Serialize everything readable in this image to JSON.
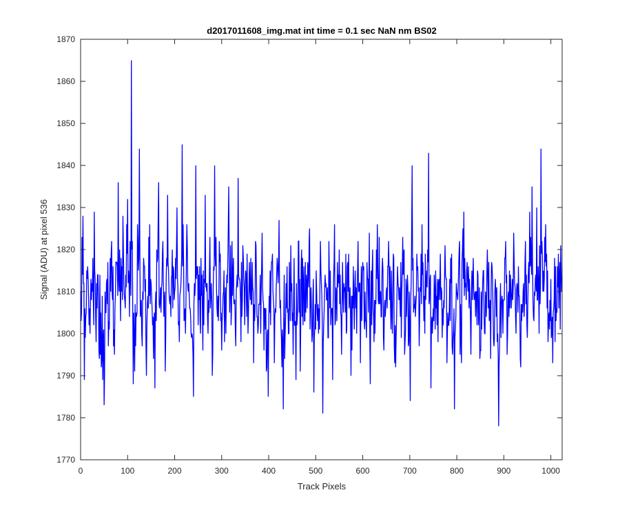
{
  "chart_data": {
    "type": "line",
    "title": "d2017011608_img.mat int time = 0.1 sec  NaN nm BS02",
    "xlabel": "Track Pixels",
    "ylabel": "Signal (ADU) at pixel 536",
    "xlim": [
      0,
      1024
    ],
    "ylim": [
      1770,
      1870
    ],
    "xticks": [
      0,
      100,
      200,
      300,
      400,
      500,
      600,
      700,
      800,
      900,
      1000
    ],
    "yticks": [
      1770,
      1780,
      1790,
      1800,
      1810,
      1820,
      1830,
      1840,
      1850,
      1860,
      1870
    ],
    "grid": false,
    "legend": "none",
    "box": true,
    "series": [
      {
        "color": "#0000ff",
        "noise": {
          "n": 1024,
          "mean": 1809,
          "sd": 7,
          "seed": 536
        },
        "points": [
          [
            0,
            1810
          ],
          [
            5,
            1828
          ],
          [
            8,
            1789
          ],
          [
            10,
            1799
          ],
          [
            15,
            1816
          ],
          [
            20,
            1800
          ],
          [
            26,
            1818
          ],
          [
            29,
            1829
          ],
          [
            33,
            1798
          ],
          [
            37,
            1814
          ],
          [
            42,
            1795
          ],
          [
            47,
            1789
          ],
          [
            50,
            1783
          ],
          [
            55,
            1812
          ],
          [
            60,
            1803
          ],
          [
            66,
            1822
          ],
          [
            70,
            1797
          ],
          [
            75,
            1817
          ],
          [
            80,
            1836
          ],
          [
            85,
            1803
          ],
          [
            90,
            1828
          ],
          [
            95,
            1806
          ],
          [
            100,
            1832
          ],
          [
            104,
            1804
          ],
          [
            108,
            1865
          ],
          [
            112,
            1788
          ],
          [
            117,
            1797
          ],
          [
            121,
            1826
          ],
          [
            125,
            1844
          ],
          [
            130,
            1800
          ],
          [
            135,
            1816
          ],
          [
            140,
            1790
          ],
          [
            145,
            1823
          ],
          [
            150,
            1812
          ],
          [
            155,
            1794
          ],
          [
            158,
            1787
          ],
          [
            162,
            1820
          ],
          [
            166,
            1836
          ],
          [
            171,
            1805
          ],
          [
            175,
            1822
          ],
          [
            180,
            1791
          ],
          [
            185,
            1833
          ],
          [
            190,
            1807
          ],
          [
            195,
            1820
          ],
          [
            200,
            1810
          ],
          [
            205,
            1830
          ],
          [
            210,
            1798
          ],
          [
            216,
            1845
          ],
          [
            221,
            1804
          ],
          [
            226,
            1826
          ],
          [
            230,
            1812
          ],
          [
            235,
            1800
          ],
          [
            240,
            1785
          ],
          [
            245,
            1840
          ],
          [
            250,
            1802
          ],
          [
            256,
            1818
          ],
          [
            260,
            1796
          ],
          [
            265,
            1833
          ],
          [
            270,
            1804
          ],
          [
            275,
            1823
          ],
          [
            280,
            1790
          ],
          [
            285,
            1840
          ],
          [
            290,
            1806
          ],
          [
            295,
            1822
          ],
          [
            300,
            1796
          ],
          [
            305,
            1815
          ],
          [
            310,
            1810
          ],
          [
            315,
            1835
          ],
          [
            320,
            1802
          ],
          [
            325,
            1818
          ],
          [
            330,
            1797
          ],
          [
            335,
            1837
          ],
          [
            340,
            1808
          ],
          [
            345,
            1821
          ],
          [
            350,
            1812
          ],
          [
            356,
            1800
          ],
          [
            362,
            1818
          ],
          [
            368,
            1793
          ],
          [
            372,
            1822
          ],
          [
            377,
            1800
          ],
          [
            382,
            1814
          ],
          [
            386,
            1824
          ],
          [
            390,
            1796
          ],
          [
            395,
            1791
          ],
          [
            399,
            1785
          ],
          [
            402,
            1805
          ],
          [
            407,
            1817
          ],
          [
            412,
            1793
          ],
          [
            417,
            1814
          ],
          [
            422,
            1827
          ],
          [
            427,
            1799
          ],
          [
            431,
            1782
          ],
          [
            437,
            1812
          ],
          [
            442,
            1800
          ],
          [
            447,
            1821
          ],
          [
            452,
            1795
          ],
          [
            458,
            1789
          ],
          [
            463,
            1822
          ],
          [
            468,
            1800
          ],
          [
            472,
            1818
          ],
          [
            476,
            1803
          ],
          [
            481,
            1812
          ],
          [
            487,
            1825
          ],
          [
            492,
            1798
          ],
          [
            496,
            1786
          ],
          [
            501,
            1815
          ],
          [
            506,
            1800
          ],
          [
            510,
            1822
          ],
          [
            515,
            1781
          ],
          [
            521,
            1811
          ],
          [
            526,
            1799
          ],
          [
            531,
            1815
          ],
          [
            536,
            1789
          ],
          [
            540,
            1826
          ],
          [
            545,
            1803
          ],
          [
            550,
            1820
          ],
          [
            555,
            1795
          ],
          [
            560,
            1812
          ],
          [
            565,
            1800
          ],
          [
            570,
            1819
          ],
          [
            575,
            1790
          ],
          [
            580,
            1816
          ],
          [
            585,
            1806
          ],
          [
            590,
            1822
          ],
          [
            595,
            1793
          ],
          [
            600,
            1817
          ],
          [
            606,
            1803
          ],
          [
            611,
            1813
          ],
          [
            616,
            1788
          ],
          [
            621,
            1820
          ],
          [
            626,
            1800
          ],
          [
            631,
            1826
          ],
          [
            636,
            1807
          ],
          [
            641,
            1815
          ],
          [
            645,
            1796
          ],
          [
            650,
            1810
          ],
          [
            655,
            1822
          ],
          [
            660,
            1801
          ],
          [
            665,
            1819
          ],
          [
            670,
            1792
          ],
          [
            675,
            1812
          ],
          [
            680,
            1804
          ],
          [
            685,
            1823
          ],
          [
            690,
            1798
          ],
          [
            696,
            1811
          ],
          [
            701,
            1784
          ],
          [
            705,
            1840
          ],
          [
            710,
            1806
          ],
          [
            715,
            1819
          ],
          [
            720,
            1797
          ],
          [
            726,
            1826
          ],
          [
            730,
            1803
          ],
          [
            735,
            1812
          ],
          [
            740,
            1843
          ],
          [
            745,
            1787
          ],
          [
            750,
            1806
          ],
          [
            755,
            1815
          ],
          [
            760,
            1798
          ],
          [
            765,
            1819
          ],
          [
            770,
            1806
          ],
          [
            775,
            1821
          ],
          [
            780,
            1800
          ],
          [
            785,
            1813
          ],
          [
            790,
            1797
          ],
          [
            795,
            1782
          ],
          [
            800,
            1810
          ],
          [
            805,
            1820
          ],
          [
            810,
            1793
          ],
          [
            815,
            1829
          ],
          [
            820,
            1808
          ],
          [
            825,
            1816
          ],
          [
            830,
            1795
          ],
          [
            835,
            1818
          ],
          [
            840,
            1804
          ],
          [
            845,
            1814
          ],
          [
            850,
            1796
          ],
          [
            855,
            1812
          ],
          [
            860,
            1800
          ],
          [
            865,
            1820
          ],
          [
            870,
            1804
          ],
          [
            875,
            1816
          ],
          [
            880,
            1799
          ],
          [
            885,
            1811
          ],
          [
            889,
            1778
          ],
          [
            893,
            1812
          ],
          [
            898,
            1800
          ],
          [
            902,
            1818
          ],
          [
            907,
            1795
          ],
          [
            912,
            1815
          ],
          [
            916,
            1806
          ],
          [
            921,
            1824
          ],
          [
            926,
            1800
          ],
          [
            931,
            1816
          ],
          [
            936,
            1792
          ],
          [
            941,
            1810
          ],
          [
            946,
            1822
          ],
          [
            950,
            1799
          ],
          [
            955,
            1829
          ],
          [
            960,
            1835
          ],
          [
            965,
            1810
          ],
          [
            970,
            1830
          ],
          [
            975,
            1800
          ],
          [
            979,
            1844
          ],
          [
            984,
            1815
          ],
          [
            989,
            1826
          ],
          [
            994,
            1798
          ],
          [
            999,
            1803
          ],
          [
            1004,
            1793
          ],
          [
            1008,
            1818
          ],
          [
            1013,
            1805
          ],
          [
            1018,
            1814
          ],
          [
            1024,
            1810
          ]
        ]
      }
    ]
  }
}
